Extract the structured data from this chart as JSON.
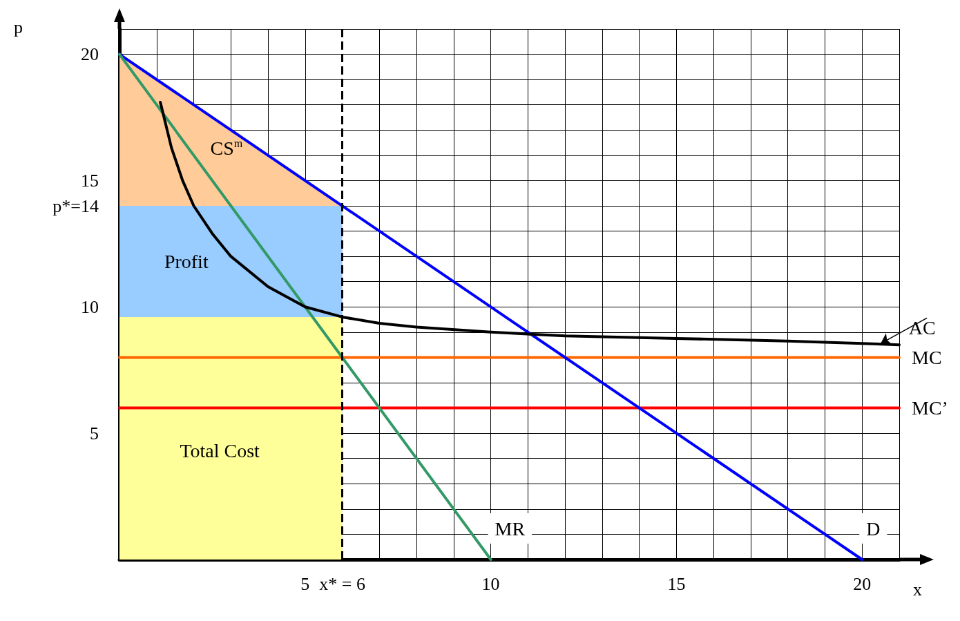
{
  "chart_data": {
    "type": "line",
    "xlabel": "x",
    "ylabel": "p",
    "xlim": [
      0,
      21
    ],
    "ylim": [
      0,
      21
    ],
    "xticks": [
      {
        "value": 1,
        "label": null
      },
      {
        "value": 2,
        "label": null
      },
      {
        "value": 3,
        "label": null
      },
      {
        "value": 4,
        "label": null
      },
      5,
      {
        "value": 6,
        "label": "x* = 6"
      },
      {
        "value": 7,
        "label": null
      },
      {
        "value": 8,
        "label": null
      },
      {
        "value": 9,
        "label": null
      },
      10,
      {
        "value": 11,
        "label": null
      },
      {
        "value": 12,
        "label": null
      },
      {
        "value": 13,
        "label": null
      },
      {
        "value": 14,
        "label": null
      },
      15,
      {
        "value": 16,
        "label": null
      },
      {
        "value": 17,
        "label": null
      },
      {
        "value": 18,
        "label": null
      },
      {
        "value": 19,
        "label": null
      },
      20,
      {
        "value": 21,
        "label": null
      }
    ],
    "yticks": [
      {
        "value": 1,
        "label": null
      },
      {
        "value": 2,
        "label": null
      },
      {
        "value": 3,
        "label": null
      },
      {
        "value": 4,
        "label": null
      },
      5,
      {
        "value": 6,
        "label": null
      },
      {
        "value": 7,
        "label": null
      },
      {
        "value": 8,
        "label": null
      },
      {
        "value": 9,
        "label": null
      },
      10,
      {
        "value": 11,
        "label": null
      },
      {
        "value": 12,
        "label": null
      },
      {
        "value": 13,
        "label": null
      },
      {
        "value": 14,
        "label": "p*=14"
      },
      15,
      {
        "value": 16,
        "label": null
      },
      {
        "value": 17,
        "label": null
      },
      {
        "value": 18,
        "label": null
      },
      {
        "value": 19,
        "label": null
      },
      20,
      {
        "value": 21,
        "label": null
      }
    ],
    "grid": true,
    "marker": "none",
    "series": [
      {
        "type": "area",
        "name": "CS$^{m}$",
        "color": "#ffcc99",
        "x": [
          0,
          6
        ],
        "values": [
          20,
          14
        ]
      },
      {
        "type": "area",
        "name": "Profit",
        "color": "#99ccff",
        "x": [
          0,
          6
        ],
        "values": [
          14,
          14
        ]
      },
      {
        "type": "area",
        "name": "Total Cost",
        "color": "#ffff99",
        "x": [
          0,
          6
        ],
        "values": [
          9.6,
          9.6
        ]
      },
      {
        "name": "MC",
        "color": "#ff6600",
        "x": [
          0,
          21
        ],
        "values": [
          8,
          8
        ]
      },
      {
        "name": "MC’",
        "color": "#ff0000",
        "x": [
          0,
          21
        ],
        "values": [
          6,
          6
        ]
      },
      {
        "name": "D",
        "color": "#0000ff",
        "x": [
          0,
          20
        ],
        "values": [
          20,
          0
        ]
      },
      {
        "name": "MR",
        "color": "#339966",
        "x": [
          0,
          10
        ],
        "values": [
          20,
          0
        ]
      },
      {
        "color": "#000000",
        "x": [
          1.1,
          1.4,
          1.7,
          2,
          2.5,
          3,
          4,
          5,
          6,
          7,
          8,
          10,
          12,
          15,
          18,
          21
        ],
        "values": [
          18.1,
          16.3,
          15,
          14,
          12.9,
          12,
          10.8,
          10,
          9.6,
          9.35,
          9.2,
          9,
          8.85,
          8.75,
          8.65,
          8.5
        ]
      }
    ],
    "ref_lines": [
      {
        "axis": "x",
        "value": 6,
        "color": "#000000",
        "line_style": "dashed"
      }
    ],
    "annotations": [
      {
        "text": "AC",
        "x": 20.5,
        "y": 8.55
      }
    ]
  }
}
